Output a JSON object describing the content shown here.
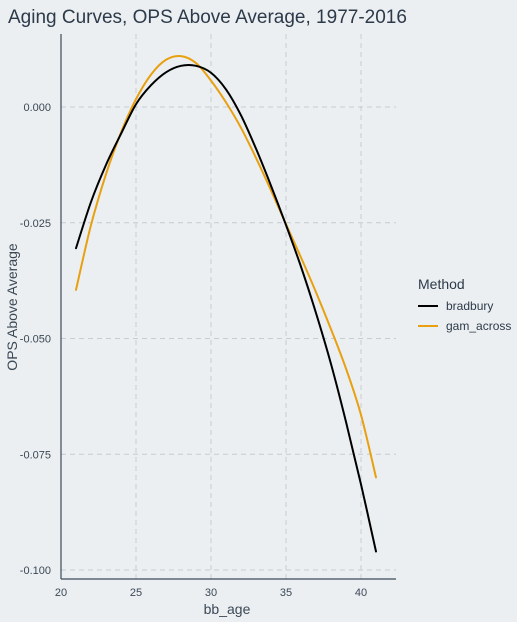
{
  "chart_data": {
    "type": "line",
    "title": "Aging Curves, OPS Above Average, 1977-2016",
    "xlabel": "bb_age",
    "ylabel": "OPS Above Average",
    "xlim": [
      20,
      42
    ],
    "ylim": [
      -0.1,
      0.013
    ],
    "x_ticks": [
      20,
      25,
      30,
      35,
      40
    ],
    "x_tick_labels": [
      "20",
      "25",
      "30",
      "35",
      "40"
    ],
    "y_ticks": [
      0.0,
      -0.025,
      -0.05,
      -0.075,
      -0.1
    ],
    "y_tick_labels": [
      "0.000",
      "-0.025",
      "-0.050",
      "-0.075",
      "-0.100"
    ],
    "grid": true,
    "legend": {
      "title": "Method",
      "placement": "right"
    },
    "series": [
      {
        "name": "bradbury",
        "color": "#000000",
        "x": [
          21,
          22,
          23,
          24,
          25,
          26,
          27,
          28,
          29,
          30,
          31,
          32,
          33,
          34,
          35,
          36,
          37,
          38,
          39,
          40,
          41
        ],
        "y": [
          -0.0305,
          -0.0205,
          -0.0125,
          -0.0058,
          0.0006,
          0.0047,
          0.0075,
          0.0089,
          0.0089,
          0.0074,
          0.0038,
          -0.0018,
          -0.009,
          -0.017,
          -0.0255,
          -0.0345,
          -0.0445,
          -0.0555,
          -0.068,
          -0.0815,
          -0.096
        ]
      },
      {
        "name": "gam_across",
        "color": "#e8a010",
        "x": [
          21,
          22,
          23,
          24,
          25,
          26,
          27,
          28,
          29,
          30,
          31,
          32,
          33,
          34,
          35,
          36,
          37,
          38,
          39,
          40,
          41
        ],
        "y": [
          -0.0395,
          -0.0255,
          -0.0145,
          -0.0055,
          0.0017,
          0.007,
          0.0102,
          0.011,
          0.0095,
          0.0057,
          0.001,
          -0.0045,
          -0.011,
          -0.018,
          -0.0253,
          -0.0325,
          -0.04,
          -0.048,
          -0.0565,
          -0.0665,
          -0.08
        ]
      }
    ]
  }
}
